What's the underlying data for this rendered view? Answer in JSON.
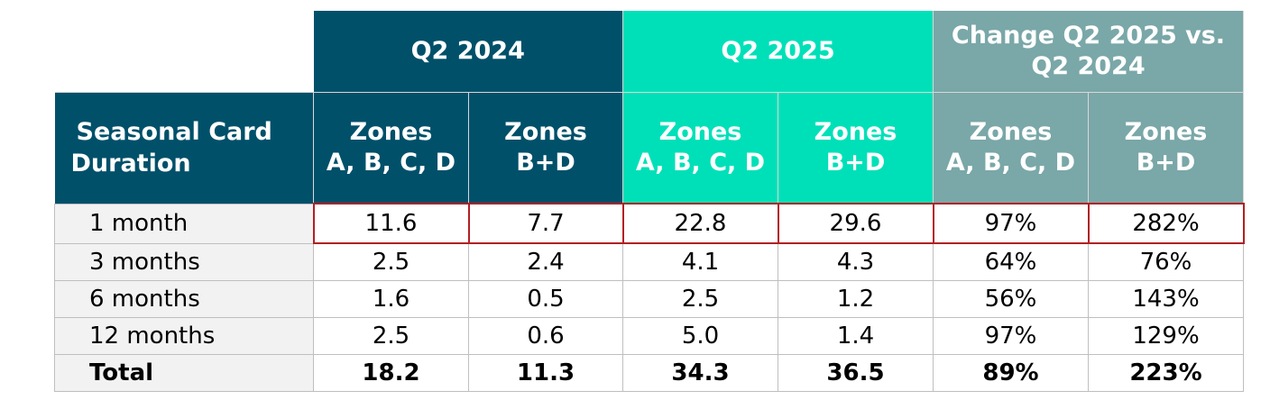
{
  "header": {
    "groups": [
      {
        "label": "Q2 2024",
        "color": "#00506a"
      },
      {
        "label": "Q2 2025",
        "color": "#00e0b8"
      },
      {
        "label_line1": "Change Q2 2025 vs.",
        "label_line2": "Q2 2024",
        "color": "#7aa7a8"
      }
    ],
    "row_label": {
      "line1": "Seasonal Card",
      "line2": "Duration"
    },
    "sub": [
      {
        "line1": "Zones",
        "line2": "A, B, C, D"
      },
      {
        "line1": "Zones",
        "line2": "B+D"
      },
      {
        "line1": "Zones",
        "line2": "A, B, C, D"
      },
      {
        "line1": "Zones",
        "line2": "B+D"
      },
      {
        "line1": "Zones",
        "line2": "A, B, C, D"
      },
      {
        "line1": "Zones",
        "line2": "B+D"
      }
    ]
  },
  "rows": [
    {
      "label": "1 month",
      "values": [
        "11.6",
        "7.7",
        "22.8",
        "29.6",
        "97%",
        "282%"
      ],
      "highlight": true
    },
    {
      "label": "3 months",
      "values": [
        "2.5",
        "2.4",
        "4.1",
        "4.3",
        "64%",
        "76%"
      ]
    },
    {
      "label": "6 months",
      "values": [
        "1.6",
        "0.5",
        "2.5",
        "1.2",
        "56%",
        "143%"
      ]
    },
    {
      "label": "12 months",
      "values": [
        "2.5",
        "0.6",
        "5.0",
        "1.4",
        "97%",
        "129%"
      ]
    },
    {
      "label": "Total",
      "values": [
        "18.2",
        "11.3",
        "34.3",
        "36.5",
        "89%",
        "223%"
      ],
      "bold": true
    }
  ],
  "colors": {
    "highlight_border": "#b21f24"
  }
}
